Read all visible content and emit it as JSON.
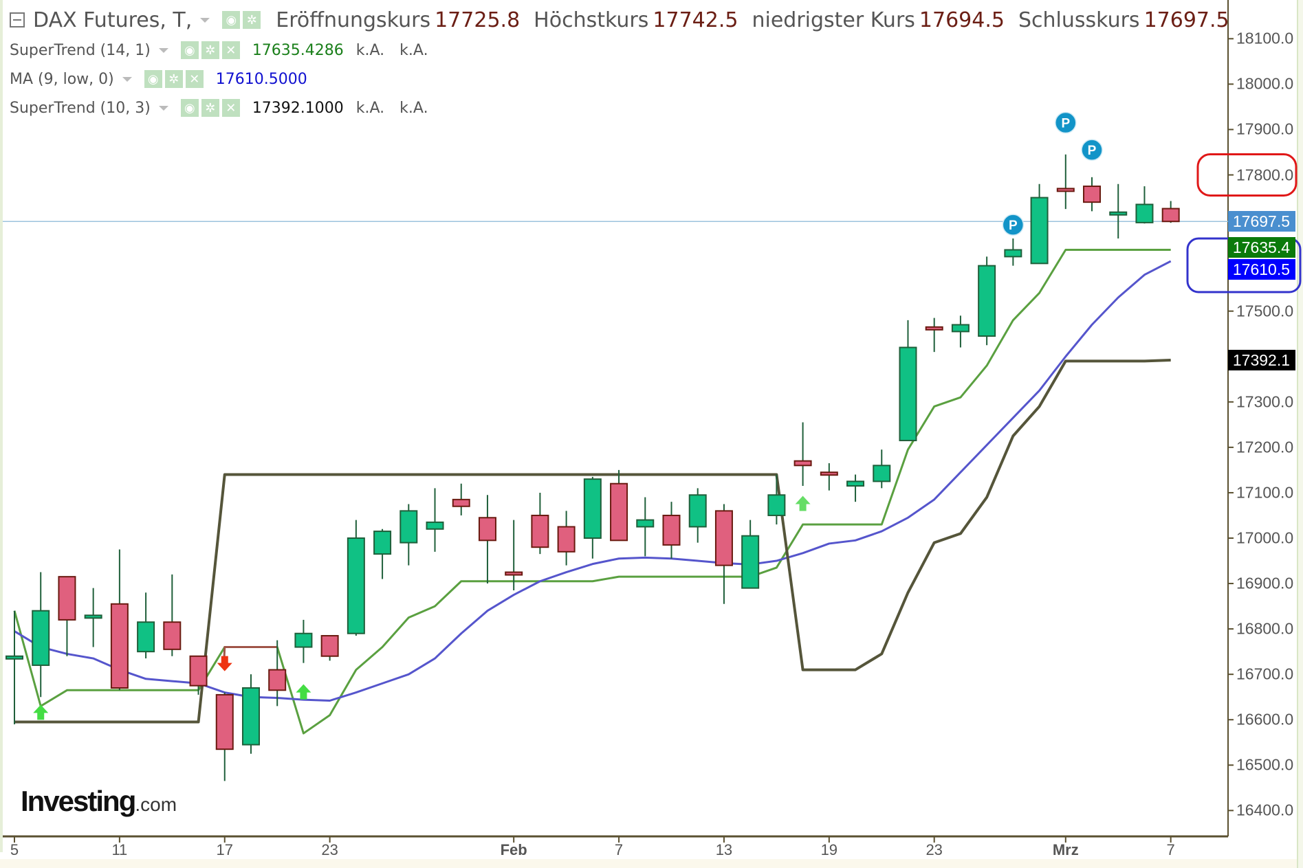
{
  "header": {
    "symbol": "DAX Futures, T,",
    "fields": [
      {
        "label": "Eröffnungskurs",
        "value": "17725.8"
      },
      {
        "label": "Höchstkurs",
        "value": "17742.5"
      },
      {
        "label": "niedrigster Kurs",
        "value": "17694.5"
      },
      {
        "label": "Schlusskurs",
        "value": "17697.5"
      }
    ]
  },
  "indicators": [
    {
      "name": "SuperTrend (14, 1)",
      "value": "17635.4286",
      "color": "#1a7f1a",
      "extra1": "k.A.",
      "extra2": "k.A."
    },
    {
      "name": "MA (9, low, 0)",
      "value": "17610.5000",
      "color": "#1010d0"
    },
    {
      "name": "SuperTrend (10, 3)",
      "value": "17392.1000",
      "color": "#111111",
      "extra1": "k.A.",
      "extra2": "k.A."
    }
  ],
  "icons": {
    "eye": "eye-icon",
    "gear": "gear-icon",
    "close": "close-icon",
    "caret": "caret-down-icon",
    "collapse": "collapse-icon"
  },
  "price_tags": [
    {
      "value": "17697.5",
      "price": 17697.5,
      "bg": "#4a8fcf"
    },
    {
      "value": "17635.4",
      "price": 17640,
      "bg": "#0a7a0a"
    },
    {
      "value": "17610.5",
      "price": 17592,
      "bg": "#0000ff"
    },
    {
      "value": "17392.1",
      "price": 17392.1,
      "bg": "#000000"
    }
  ],
  "logo": {
    "brand": "Investing",
    "suffix": ".com"
  },
  "chart_data": {
    "type": "candlestick",
    "title": "DAX Futures, T",
    "xlabel": "",
    "ylabel": "",
    "ylim": [
      16340,
      18240
    ],
    "yticks": [
      16400,
      16500,
      16600,
      16700,
      16800,
      16900,
      17000,
      17100,
      17200,
      17300,
      17400,
      17500,
      17600,
      17700,
      17800,
      17900,
      18000,
      18100
    ],
    "ytick_labels": [
      "16400.0",
      "16500.0",
      "16600.0",
      "16700.0",
      "16800.0",
      "16900.0",
      "17000.0",
      "17100.0",
      "17200.0",
      "17300.0",
      "17400.0",
      "17500.0",
      "17600.0",
      "17700.0",
      "17800.0",
      "17900.0",
      "18000.0",
      "18100.0"
    ],
    "xticks": [
      {
        "label": "5",
        "index": 0,
        "bold": false
      },
      {
        "label": "11",
        "index": 4,
        "bold": false
      },
      {
        "label": "17",
        "index": 8,
        "bold": false
      },
      {
        "label": "23",
        "index": 12,
        "bold": false
      },
      {
        "label": "Feb",
        "index": 19,
        "bold": true
      },
      {
        "label": "7",
        "index": 23,
        "bold": false
      },
      {
        "label": "13",
        "index": 27,
        "bold": false
      },
      {
        "label": "19",
        "index": 31,
        "bold": false
      },
      {
        "label": "23",
        "index": 35,
        "bold": false
      },
      {
        "label": "Mrz",
        "index": 40,
        "bold": true
      },
      {
        "label": "7",
        "index": 44,
        "bold": false
      }
    ],
    "candles": [
      [
        16735,
        16840,
        16590,
        16740
      ],
      [
        16720,
        16925,
        16650,
        16840
      ],
      [
        16915,
        16915,
        16740,
        16820
      ],
      [
        16825,
        16890,
        16760,
        16830
      ],
      [
        16855,
        16975,
        16665,
        16670
      ],
      [
        16750,
        16880,
        16735,
        16815
      ],
      [
        16815,
        16920,
        16740,
        16755
      ],
      [
        16740,
        16740,
        16655,
        16675
      ],
      [
        16655,
        16660,
        16465,
        16535
      ],
      [
        16545,
        16700,
        16525,
        16670
      ],
      [
        16710,
        16775,
        16630,
        16665
      ],
      [
        16760,
        16820,
        16725,
        16790
      ],
      [
        16785,
        16785,
        16730,
        16740
      ],
      [
        16790,
        17040,
        16785,
        17000
      ],
      [
        16965,
        17020,
        16910,
        17015
      ],
      [
        16990,
        17075,
        16940,
        17060
      ],
      [
        17020,
        17110,
        16970,
        17035
      ],
      [
        17085,
        17120,
        17050,
        17070
      ],
      [
        17045,
        17095,
        16900,
        16995
      ],
      [
        16925,
        17040,
        16885,
        16920
      ],
      [
        17050,
        17100,
        16965,
        16980
      ],
      [
        17025,
        17060,
        16940,
        16970
      ],
      [
        17000,
        17135,
        16955,
        17130
      ],
      [
        17120,
        17150,
        16995,
        16995
      ],
      [
        17025,
        17090,
        16960,
        17040
      ],
      [
        17050,
        17080,
        16955,
        16985
      ],
      [
        17025,
        17110,
        16990,
        17095
      ],
      [
        17060,
        17075,
        16855,
        16940
      ],
      [
        16890,
        17040,
        16890,
        17005
      ],
      [
        17050,
        17140,
        17030,
        17095
      ],
      [
        17170,
        17255,
        17115,
        17160
      ],
      [
        17145,
        17165,
        17105,
        17140
      ],
      [
        17115,
        17140,
        17080,
        17125
      ],
      [
        17125,
        17195,
        17110,
        17160
      ],
      [
        17215,
        17480,
        17215,
        17420
      ],
      [
        17465,
        17485,
        17410,
        17460
      ],
      [
        17455,
        17490,
        17420,
        17470
      ],
      [
        17445,
        17620,
        17425,
        17600
      ],
      [
        17620,
        17660,
        17600,
        17635
      ],
      [
        17605,
        17780,
        17605,
        17750
      ],
      [
        17770,
        17845,
        17725,
        17765
      ],
      [
        17775,
        17795,
        17720,
        17740
      ],
      [
        17715,
        17780,
        17660,
        17718
      ],
      [
        17695,
        17775,
        17693,
        17735
      ],
      [
        17725.8,
        17742.5,
        17694.5,
        17697.5
      ]
    ],
    "candle_format": [
      "open",
      "high",
      "low",
      "close"
    ],
    "series": [
      {
        "name": "SuperTrend (14, 1)",
        "color": "#5aa040",
        "values": [
          16840,
          16630,
          16665,
          16665,
          16665,
          16665,
          16665,
          16665,
          16760,
          16760,
          16760,
          16570,
          16610,
          16710,
          16760,
          16825,
          16850,
          16905,
          16905,
          16905,
          16905,
          16905,
          16905,
          16915,
          16915,
          16915,
          16915,
          16915,
          16915,
          16935,
          17030,
          17030,
          17030,
          17030,
          17195,
          17290,
          17310,
          17380,
          17480,
          17540,
          17635,
          17635,
          17635,
          17635,
          17635
        ]
      },
      {
        "name": "MA (9, low, 0)",
        "color": "#5555cc",
        "values": [
          16795,
          16760,
          16745,
          16735,
          16710,
          16690,
          16685,
          16680,
          16660,
          16650,
          16648,
          16644,
          16642,
          16660,
          16680,
          16700,
          16735,
          16790,
          16840,
          16875,
          16905,
          16925,
          16943,
          16955,
          16957,
          16955,
          16950,
          16945,
          16942,
          16950,
          16967,
          16988,
          16995,
          17015,
          17045,
          17085,
          17145,
          17205,
          17265,
          17325,
          17400,
          17470,
          17530,
          17580,
          17610
        ]
      },
      {
        "name": "SuperTrend (10, 3)",
        "color": "#55553a",
        "values": [
          16595,
          16595,
          16595,
          16595,
          16595,
          16595,
          16595,
          16595,
          17140,
          17140,
          17140,
          17140,
          17140,
          17140,
          17140,
          17140,
          17140,
          17140,
          17140,
          17140,
          17140,
          17140,
          17140,
          17140,
          17140,
          17140,
          17140,
          17140,
          17140,
          17140,
          16710,
          16710,
          16710,
          16745,
          16880,
          16990,
          17010,
          17090,
          17225,
          17290,
          17390,
          17390,
          17390,
          17390,
          17392
        ]
      },
      {
        "name": "SuperTrend (14, 1) down",
        "color": "#a05548",
        "segment": [
          8,
          10
        ],
        "values": [
          16760,
          16760,
          16760
        ]
      }
    ],
    "markers": [
      {
        "type": "up-arrow",
        "index": 1,
        "price": 16615,
        "color": "#44dd44"
      },
      {
        "type": "down-arrow",
        "index": 8,
        "price": 16725,
        "color": "#ee3311"
      },
      {
        "type": "up-arrow",
        "index": 11,
        "price": 16660,
        "color": "#44dd44"
      },
      {
        "type": "up-arrow",
        "index": 30,
        "price": 17075,
        "color": "#66dd66"
      },
      {
        "type": "pivot",
        "label": "P",
        "index": 38,
        "price": 17690
      },
      {
        "type": "pivot",
        "label": "P",
        "index": 40,
        "price": 17915
      },
      {
        "type": "pivot",
        "label": "P",
        "index": 41,
        "price": 17855
      }
    ],
    "last_price_line": 17697.5,
    "annotations": [
      {
        "type": "red-rounded-rect",
        "around": "17800.0"
      },
      {
        "type": "blue-rounded-rect",
        "around": [
          "17635.4",
          "17610.5"
        ]
      }
    ]
  }
}
